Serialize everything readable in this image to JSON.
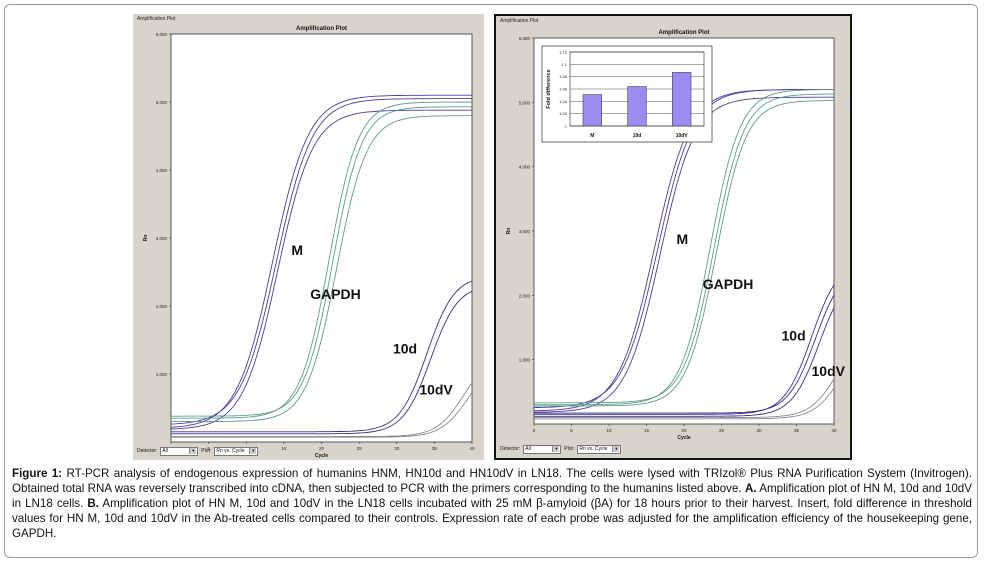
{
  "chart_data": [
    {
      "id": "A",
      "type": "line",
      "panel_title": "Amplification Plot",
      "title": "Amplification Plot",
      "xlabel": "Cycle",
      "ylabel": "Rn",
      "xlim": [
        0,
        40
      ],
      "ylim": [
        0,
        6000
      ],
      "x_ticks": [
        0,
        5,
        10,
        15,
        20,
        25,
        30,
        35,
        40
      ],
      "y_ticks": [
        1000,
        2000,
        3000,
        4000,
        5000,
        6000
      ],
      "y_tick_labels": [
        "1,000",
        "2,000",
        "3,000",
        "4,000",
        "5,000",
        "6,000"
      ],
      "detector_label": "Detector:",
      "detector_value": "All",
      "plot_label": "Plot:",
      "plot_value": "Rn vs. Cycle",
      "series": [
        {
          "label": "M",
          "color": "#4b3c9e",
          "label_pos": [
            16,
            2750
          ],
          "curves": [
            [
              13.5,
              4900,
              0.42,
              200
            ],
            [
              14.0,
              4800,
              0.42,
              250
            ],
            [
              14.2,
              4700,
              0.43,
              180
            ]
          ]
        },
        {
          "label": "GAPDH",
          "color": "#5e9c8a",
          "label_pos": [
            18.5,
            2100
          ],
          "curves": [
            [
              21.0,
              4650,
              0.52,
              350
            ],
            [
              21.5,
              4550,
              0.52,
              380
            ],
            [
              22.0,
              4500,
              0.5,
              300
            ]
          ]
        },
        {
          "label": "10d",
          "color": "#3a2f8a",
          "label_pos": [
            29.5,
            1300
          ],
          "curves": [
            [
              34.0,
              2300,
              0.55,
              150
            ],
            [
              34.5,
              2200,
              0.55,
              120
            ]
          ]
        },
        {
          "label": "10dV",
          "color": "#8a8a8a",
          "label_pos": [
            33,
            700
          ],
          "curves": [
            [
              39.0,
              1250,
              0.55,
              80
            ],
            [
              39.5,
              1150,
              0.55,
              70
            ]
          ]
        }
      ]
    },
    {
      "id": "B",
      "type": "line",
      "panel_title": "Amplification Plot",
      "title": "Amplification Plot",
      "xlabel": "Cycle",
      "ylabel": "Rn",
      "xlim": [
        0,
        40
      ],
      "ylim": [
        0,
        6000
      ],
      "x_ticks": [
        0,
        5,
        10,
        15,
        20,
        25,
        30,
        35,
        40
      ],
      "y_ticks": [
        1000,
        2000,
        3000,
        4000,
        5000,
        6000
      ],
      "y_tick_labels": [
        "1,000",
        "2,000",
        "3,000",
        "4,000",
        "5,000",
        "6,000"
      ],
      "detector_label": "Detector:",
      "detector_value": "All",
      "plot_label": "Plot:",
      "plot_value": "Rn vs. Cycle",
      "series": [
        {
          "label": "M",
          "color": "#4b3c9e",
          "label_pos": [
            19,
            2800
          ],
          "curves": [
            [
              16.0,
              5000,
              0.42,
              200
            ],
            [
              16.5,
              4950,
              0.42,
              250
            ],
            [
              16.8,
              4900,
              0.43,
              180
            ]
          ]
        },
        {
          "label": "GAPDH",
          "color": "#5e9c8a",
          "label_pos": [
            22.5,
            2100
          ],
          "curves": [
            [
              23.5,
              4900,
              0.5,
              300
            ],
            [
              24.0,
              4800,
              0.5,
              330
            ],
            [
              24.3,
              4750,
              0.5,
              280
            ]
          ]
        },
        {
          "label": "10d",
          "color": "#3a2f8a",
          "label_pos": [
            33,
            1300
          ],
          "curves": [
            [
              37.0,
              2400,
              0.55,
              150
            ],
            [
              37.5,
              2300,
              0.55,
              170
            ],
            [
              38.0,
              2250,
              0.55,
              120
            ]
          ]
        },
        {
          "label": "10dV",
          "color": "#8a8a8a",
          "label_pos": [
            37,
            750
          ],
          "curves": [
            [
              40.5,
              1400,
              0.55,
              100
            ],
            [
              41.0,
              1300,
              0.55,
              80
            ]
          ]
        }
      ]
    },
    {
      "id": "B-inset",
      "type": "bar",
      "ylabel": "Fold difference",
      "categories": [
        "M",
        "10d",
        "10dV"
      ],
      "values": [
        1.051,
        1.064,
        1.087
      ],
      "ylim": [
        1,
        1.12
      ],
      "y_ticks": [
        1,
        1.02,
        1.04,
        1.06,
        1.08,
        1.1,
        1.12
      ],
      "y_tick_labels": [
        "1",
        "1.02",
        "1.04",
        "1.06",
        "1.08",
        "1.1",
        "1.12"
      ],
      "bar_color": "#9a8cf0"
    }
  ],
  "caption": {
    "figure_label": "Figure 1:",
    "text1": " RT-PCR analysis of endogenous expression of humanins HNM, HN10d and HN10dV in LN18. The cells were lysed with TRIzol® Plus RNA Purification System (Invitrogen). Obtained total RNA was reversely transcribed into cDNA, then subjected to PCR with the primers corresponding to the humanins listed above. ",
    "label_a": "A.",
    "text2": " Amplification plot of HN M, 10d and 10dV in LN18 cells. ",
    "label_b": "B.",
    "text3": " Amplification plot of HN M, 10d and 10dV in the LN18 cells incubated with 25 mM β-amyloid (βA) for 18 hours prior to their harvest. Insert, fold difference in threshold values for HN M, 10d and 10dV in the Ab-treated cells compared to their controls. Expression rate of each probe was adjusted for the amplification efficiency of the housekeeping gene, GAPDH."
  }
}
